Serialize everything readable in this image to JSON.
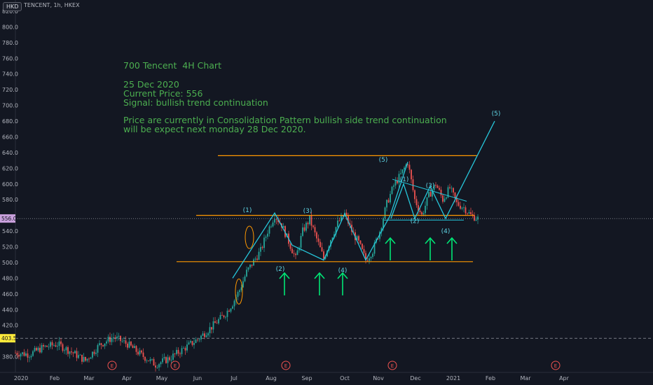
{
  "header": {
    "currency": "HKD",
    "symbol": "TENCENT, 1h, HKEX"
  },
  "annotation": {
    "title": "700 Tencent  4H Chart",
    "date": "25 Dec 2020",
    "price": "Current Price: 556",
    "signal": "Signal: bullish trend continuation",
    "line1": "Price are currently in Consolidation Pattern bullish side trend continuation",
    "line2": "will be expect next monday 28 Dec 2020."
  },
  "colors": {
    "background": "#131722",
    "up": "#26a69a",
    "down": "#ef5350",
    "annotation": "#4caf50",
    "wave": "#26c6da",
    "level": "#ff9800",
    "arrow": "#00e676"
  },
  "chart_data": {
    "type": "candlestick",
    "ylim": [
      360,
      820
    ],
    "y_ticks": [
      380,
      400,
      420,
      440,
      460,
      480,
      500,
      520,
      540,
      560,
      580,
      600,
      620,
      640,
      660,
      680,
      700,
      720,
      740,
      760,
      780,
      800,
      820
    ],
    "y_tick_labels": [
      "380.0",
      "",
      "420.0",
      "440.0",
      "460.0",
      "480.0",
      "500.0",
      "520.0",
      "540.0",
      "",
      "580.0",
      "600.0",
      "620.0",
      "640.0",
      "660.0",
      "680.0",
      "700.0",
      "720.0",
      "740.0",
      "760.0",
      "780.0",
      "800.0",
      "820.0"
    ],
    "x_ticks": [
      "2020",
      "Feb",
      "Mar",
      "Apr",
      "May",
      "Jun",
      "Jul",
      "Aug",
      "Sep",
      "Oct",
      "Nov",
      "Dec",
      "2021",
      "Feb",
      "Mar",
      "Apr"
    ],
    "current_price": "556.0",
    "marker_price": "403.5",
    "levels": [
      636,
      560,
      501
    ],
    "price_path": [
      [
        0,
        385
      ],
      [
        4,
        383
      ],
      [
        8,
        392
      ],
      [
        12,
        396
      ],
      [
        16,
        386
      ],
      [
        20,
        375
      ],
      [
        24,
        395
      ],
      [
        28,
        405
      ],
      [
        32,
        396
      ],
      [
        36,
        382
      ],
      [
        40,
        370
      ],
      [
        44,
        378
      ],
      [
        48,
        390
      ],
      [
        52,
        402
      ],
      [
        56,
        418
      ],
      [
        60,
        435
      ],
      [
        62,
        448
      ],
      [
        64,
        465
      ],
      [
        66,
        488
      ],
      [
        70,
        515
      ],
      [
        72,
        540
      ],
      [
        74,
        560
      ],
      [
        76,
        548
      ],
      [
        80,
        505
      ],
      [
        82,
        540
      ],
      [
        84,
        555
      ],
      [
        86,
        530
      ],
      [
        88,
        505
      ],
      [
        90,
        530
      ],
      [
        92,
        550
      ],
      [
        94,
        562
      ],
      [
        96,
        540
      ],
      [
        98,
        525
      ],
      [
        100,
        503
      ],
      [
        102,
        515
      ],
      [
        104,
        540
      ],
      [
        106,
        575
      ],
      [
        108,
        598
      ],
      [
        110,
        612
      ],
      [
        112,
        628
      ],
      [
        114,
        580
      ],
      [
        116,
        560
      ],
      [
        118,
        585
      ],
      [
        120,
        600
      ],
      [
        122,
        580
      ],
      [
        124,
        595
      ],
      [
        126,
        575
      ],
      [
        128,
        570
      ],
      [
        130,
        560
      ],
      [
        132,
        556
      ]
    ],
    "wave_labels": [
      {
        "t": "(1)",
        "x": 74,
        "y": 567
      },
      {
        "t": "(2)",
        "x": 88,
        "y": 492
      },
      {
        "t": "(3)",
        "x": 94,
        "y": 566
      },
      {
        "t": "(4)",
        "x": 100,
        "y": 490
      },
      {
        "t": "(5)",
        "x": 112,
        "y": 631
      },
      {
        "t": "(1)",
        "x": 119,
        "y": 606
      },
      {
        "t": "(2)",
        "x": 124,
        "y": 553
      },
      {
        "t": "(3)",
        "x": 128,
        "y": 598
      },
      {
        "t": "(4)",
        "x": 133,
        "y": 540
      },
      {
        "t": "(5)",
        "x": 145,
        "y": 690
      }
    ]
  }
}
